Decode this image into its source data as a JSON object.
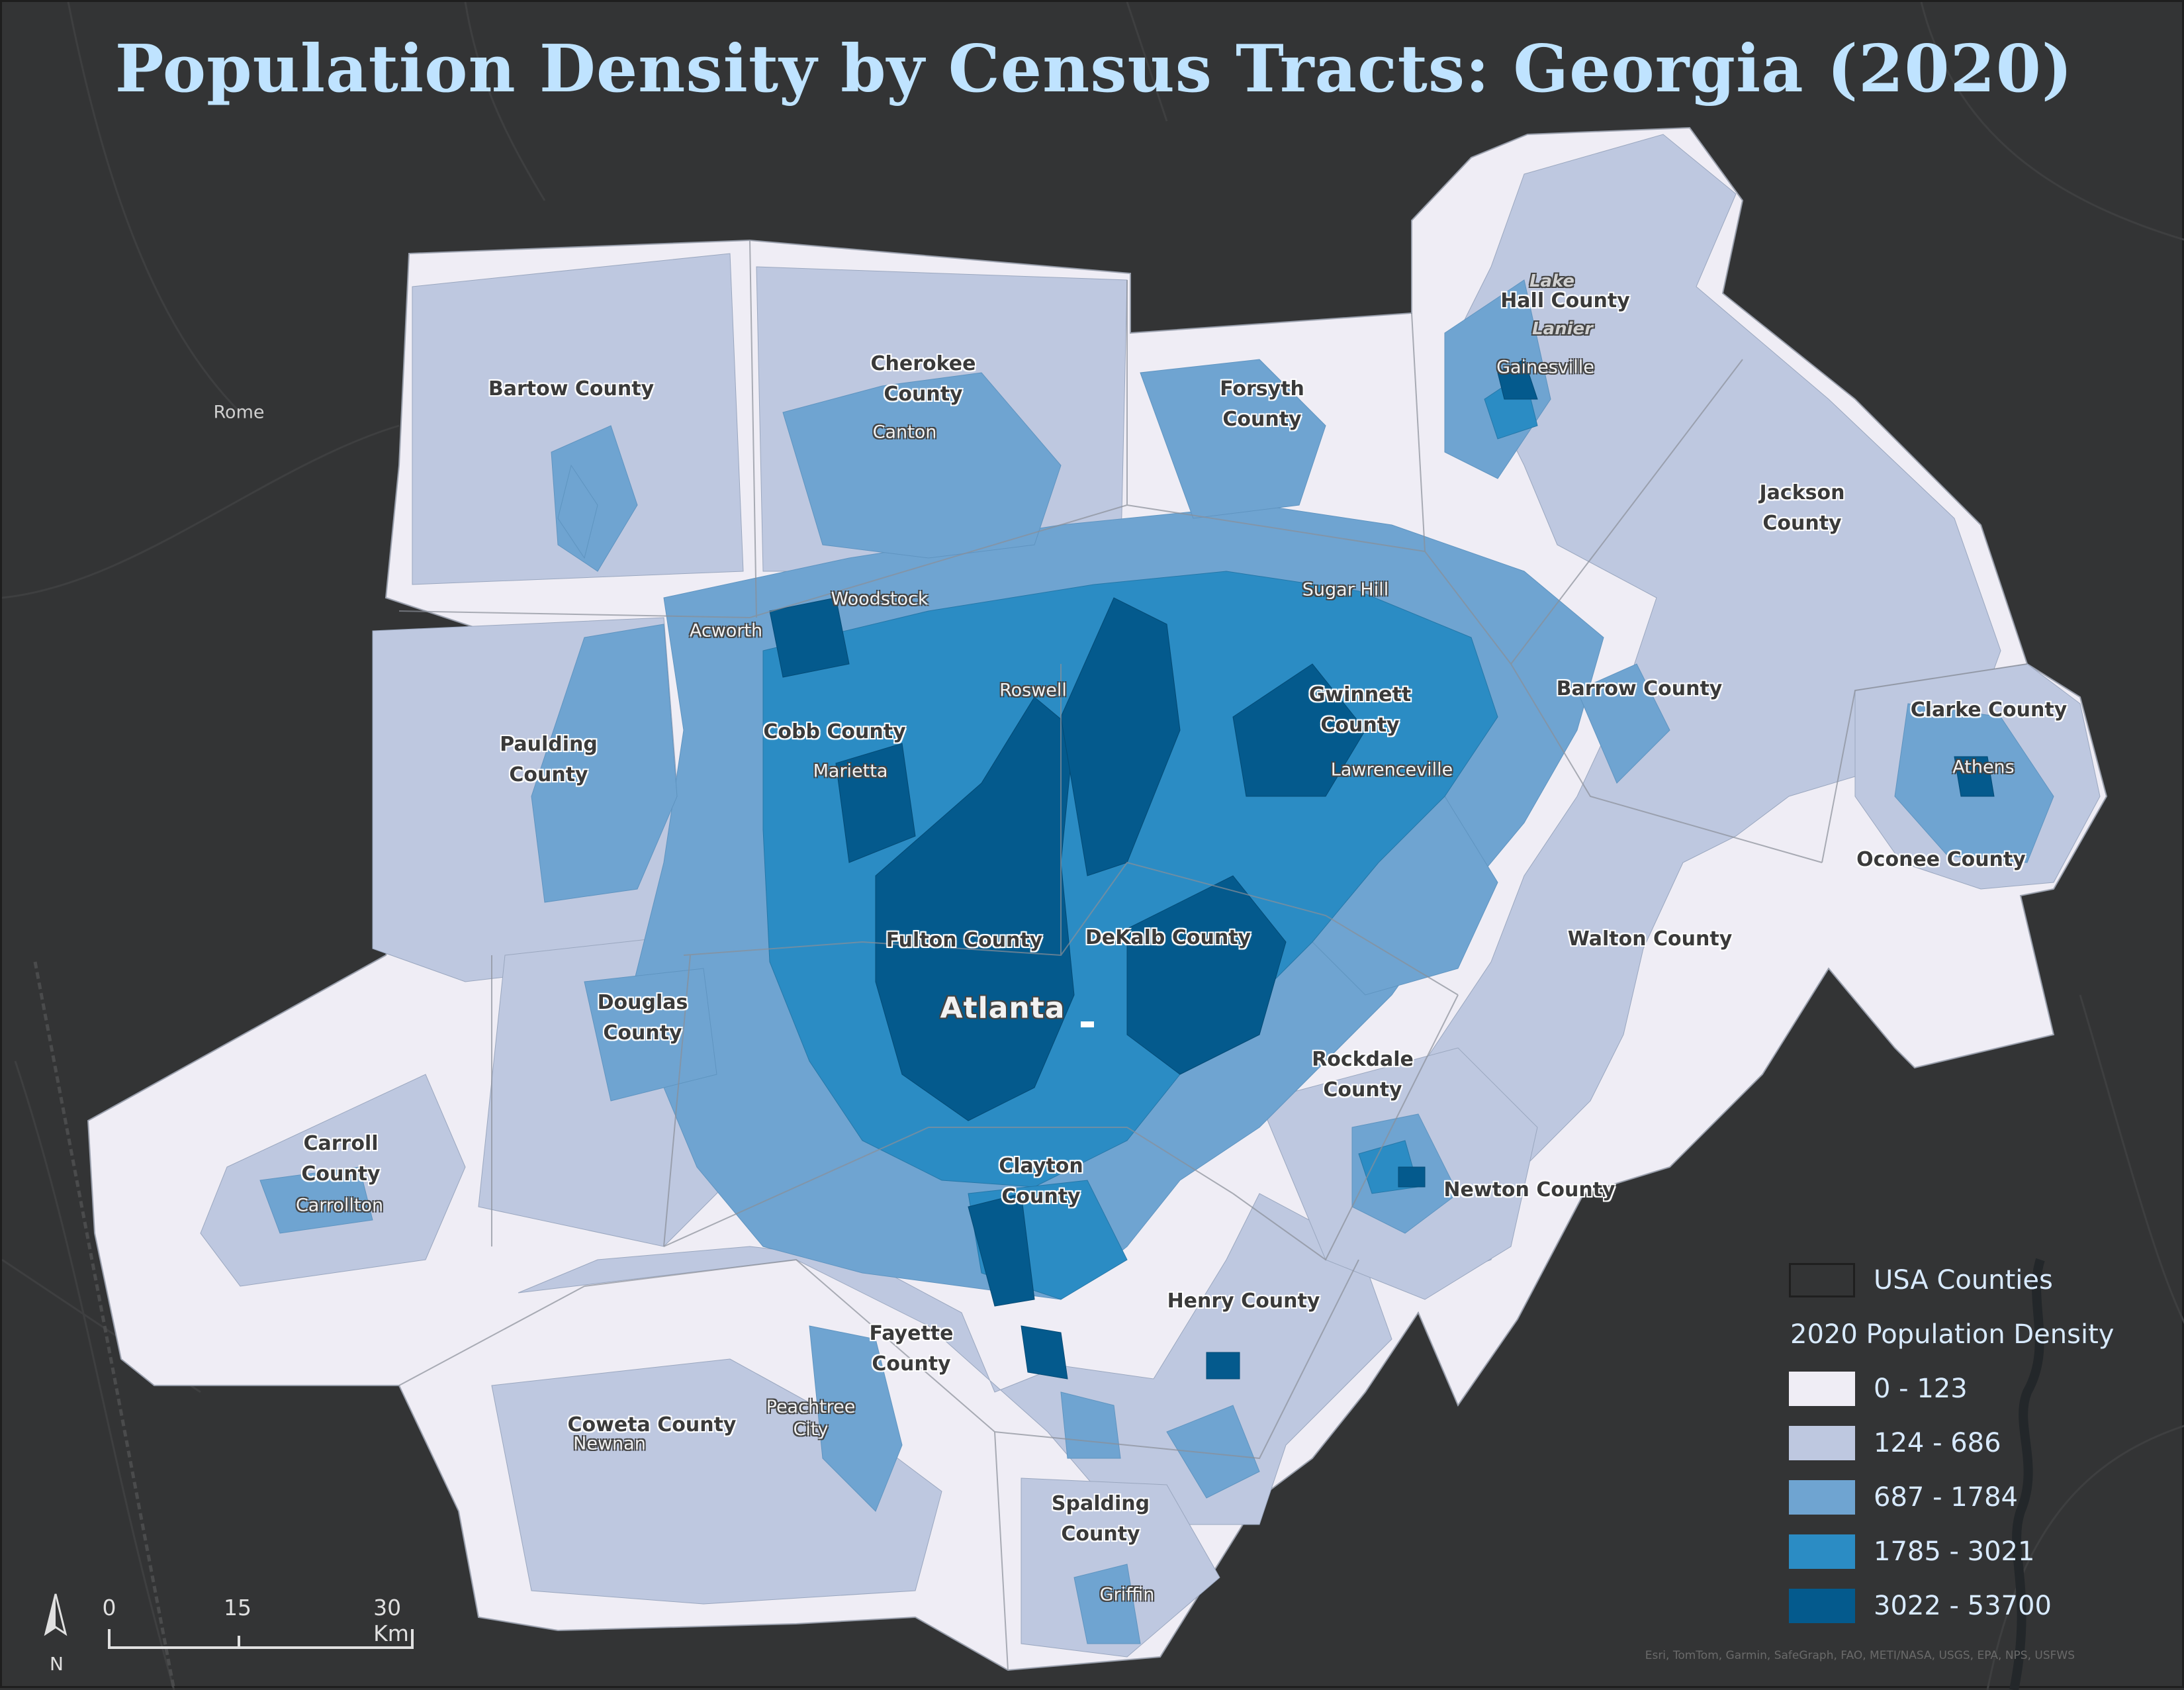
{
  "title": "Population Density by Census Tracts: Georgia (2020)",
  "counties": [
    {
      "id": "bartow",
      "label": "Bartow County"
    },
    {
      "id": "cherokee",
      "label": "Cherokee\nCounty"
    },
    {
      "id": "forsyth",
      "label": "Forsyth\nCounty"
    },
    {
      "id": "hall",
      "label": "Hall County"
    },
    {
      "id": "jackson",
      "label": "Jackson\nCounty"
    },
    {
      "id": "paulding",
      "label": "Paulding\nCounty"
    },
    {
      "id": "cobb",
      "label": "Cobb County"
    },
    {
      "id": "gwinnett",
      "label": "Gwinnett\nCounty"
    },
    {
      "id": "barrow",
      "label": "Barrow County"
    },
    {
      "id": "clarke",
      "label": "Clarke County"
    },
    {
      "id": "oconee",
      "label": "Oconee County"
    },
    {
      "id": "fulton",
      "label": "Fulton County"
    },
    {
      "id": "dekalb",
      "label": "DeKalb County"
    },
    {
      "id": "walton",
      "label": "Walton County"
    },
    {
      "id": "douglas",
      "label": "Douglas\nCounty"
    },
    {
      "id": "rockdale",
      "label": "Rockdale\nCounty"
    },
    {
      "id": "carroll",
      "label": "Carroll\nCounty"
    },
    {
      "id": "clayton",
      "label": "Clayton\nCounty"
    },
    {
      "id": "newton",
      "label": "Newton County"
    },
    {
      "id": "henry",
      "label": "Henry County"
    },
    {
      "id": "fayette",
      "label": "Fayette\nCounty"
    },
    {
      "id": "coweta",
      "label": "Coweta County"
    },
    {
      "id": "spalding",
      "label": "Spalding\nCounty"
    }
  ],
  "cities": [
    {
      "id": "rome",
      "label": "Rome"
    },
    {
      "id": "lake-lanier-1",
      "label": "Lake"
    },
    {
      "id": "lake-lanier-2",
      "label": "Lanier"
    },
    {
      "id": "gainesville",
      "label": "Gainesville"
    },
    {
      "id": "canton",
      "label": "Canton"
    },
    {
      "id": "woodstock",
      "label": "Woodstock"
    },
    {
      "id": "acworth",
      "label": "Acworth"
    },
    {
      "id": "sugar-hill",
      "label": "Sugar Hill"
    },
    {
      "id": "roswell",
      "label": "Roswell"
    },
    {
      "id": "marietta",
      "label": "Marietta"
    },
    {
      "id": "lawrenceville",
      "label": "Lawrenceville"
    },
    {
      "id": "athens",
      "label": "Athens"
    },
    {
      "id": "atlanta",
      "label": "Atlanta"
    },
    {
      "id": "carrollton",
      "label": "Carrollton"
    },
    {
      "id": "newnan",
      "label": "Newnan"
    },
    {
      "id": "peachtree-city",
      "label": "Peachtree\nCity"
    },
    {
      "id": "griffin",
      "label": "Griffin"
    }
  ],
  "legend": {
    "boundary_label": "USA Counties",
    "heading": "2020 Population Density",
    "classes": [
      {
        "label": "0 - 123",
        "color": "#efedf5"
      },
      {
        "label": "124 - 686",
        "color": "#bec8e0"
      },
      {
        "label": "687 - 1784",
        "color": "#6fa4d1"
      },
      {
        "label": "1785 - 3021",
        "color": "#2b8cc4"
      },
      {
        "label": "3022 - 53700",
        "color": "#045a8d"
      }
    ]
  },
  "scale_bar": {
    "ticks": [
      "0",
      "15",
      "30 Km"
    ]
  },
  "north_arrow": "N",
  "credits": "Esri, TomTom, Garmin, SafeGraph, FAO, METI/NASA, USGS, EPA, NPS, USFWS",
  "colors": {
    "background": "#333435",
    "title": "#bfe3ff"
  }
}
